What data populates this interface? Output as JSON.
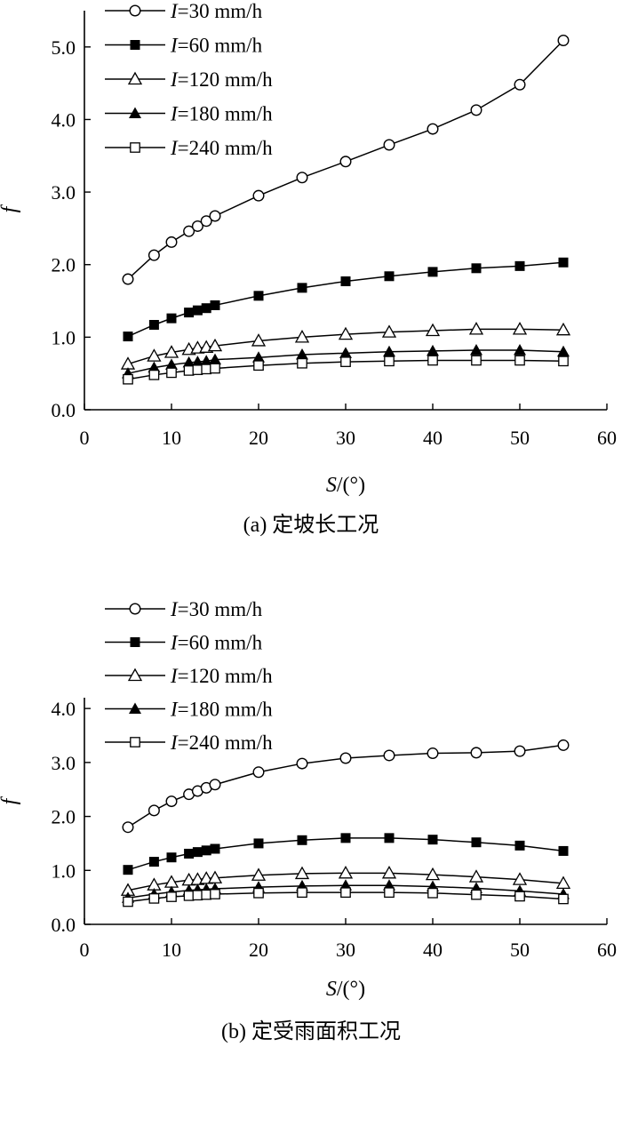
{
  "chart_data": [
    {
      "type": "line",
      "caption": "(a) 定坡长工况",
      "xlabel_var": "S",
      "xlabel_unit": "/(°)",
      "ylabel": "f",
      "xlim": [
        0,
        60
      ],
      "ylim": [
        0,
        5.5
      ],
      "xticks": [
        0,
        10,
        20,
        30,
        40,
        50,
        60
      ],
      "yticks": [
        "0.0",
        "1.0",
        "2.0",
        "3.0",
        "4.0",
        "5.0"
      ],
      "legend_position": "top-left",
      "x": [
        5,
        8,
        10,
        12,
        13,
        14,
        15,
        20,
        25,
        30,
        35,
        40,
        45,
        50,
        55
      ],
      "series": [
        {
          "name_var": "I",
          "name_rest": "=30 mm/h",
          "marker": "circle-open",
          "values": [
            1.8,
            2.13,
            2.31,
            2.46,
            2.53,
            2.6,
            2.67,
            2.95,
            3.2,
            3.42,
            3.65,
            3.87,
            4.13,
            4.48,
            5.09
          ]
        },
        {
          "name_var": "I",
          "name_rest": "=60 mm/h",
          "marker": "square-filled",
          "values": [
            1.01,
            1.17,
            1.26,
            1.34,
            1.37,
            1.4,
            1.44,
            1.57,
            1.68,
            1.77,
            1.84,
            1.9,
            1.95,
            1.98,
            2.03
          ]
        },
        {
          "name_var": "I",
          "name_rest": "=120 mm/h",
          "marker": "triangle-open",
          "values": [
            0.63,
            0.74,
            0.79,
            0.83,
            0.85,
            0.86,
            0.88,
            0.95,
            1.0,
            1.04,
            1.07,
            1.09,
            1.11,
            1.11,
            1.1
          ]
        },
        {
          "name_var": "I",
          "name_rest": "=180 mm/h",
          "marker": "triangle-filled",
          "values": [
            0.5,
            0.58,
            0.62,
            0.65,
            0.66,
            0.67,
            0.69,
            0.72,
            0.76,
            0.78,
            0.8,
            0.81,
            0.82,
            0.82,
            0.8
          ]
        },
        {
          "name_var": "I",
          "name_rest": "=240 mm/h",
          "marker": "square-open",
          "values": [
            0.42,
            0.48,
            0.51,
            0.54,
            0.55,
            0.56,
            0.57,
            0.61,
            0.64,
            0.66,
            0.67,
            0.68,
            0.68,
            0.68,
            0.67
          ]
        }
      ]
    },
    {
      "type": "line",
      "caption": "(b) 定受雨面积工况",
      "xlabel_var": "S",
      "xlabel_unit": "/(°)",
      "ylabel": "f",
      "xlim": [
        0,
        60
      ],
      "ylim": [
        0,
        4.2
      ],
      "xticks": [
        0,
        10,
        20,
        30,
        40,
        50,
        60
      ],
      "yticks": [
        "0.0",
        "1.0",
        "2.0",
        "3.0",
        "4.0"
      ],
      "legend_position": "top-left",
      "x": [
        5,
        8,
        10,
        12,
        13,
        14,
        15,
        20,
        25,
        30,
        35,
        40,
        45,
        50,
        55
      ],
      "series": [
        {
          "name_var": "I",
          "name_rest": "=30 mm/h",
          "marker": "circle-open",
          "values": [
            1.8,
            2.11,
            2.28,
            2.41,
            2.47,
            2.53,
            2.59,
            2.82,
            2.98,
            3.08,
            3.13,
            3.17,
            3.18,
            3.21,
            3.32
          ]
        },
        {
          "name_var": "I",
          "name_rest": "=60 mm/h",
          "marker": "square-filled",
          "values": [
            1.01,
            1.16,
            1.24,
            1.31,
            1.34,
            1.37,
            1.4,
            1.5,
            1.56,
            1.6,
            1.6,
            1.57,
            1.52,
            1.46,
            1.36
          ]
        },
        {
          "name_var": "I",
          "name_rest": "=120 mm/h",
          "marker": "triangle-open",
          "values": [
            0.63,
            0.73,
            0.78,
            0.82,
            0.83,
            0.85,
            0.86,
            0.91,
            0.94,
            0.95,
            0.95,
            0.92,
            0.88,
            0.83,
            0.76
          ]
        },
        {
          "name_var": "I",
          "name_rest": "=180 mm/h",
          "marker": "triangle-filled",
          "values": [
            0.49,
            0.56,
            0.6,
            0.63,
            0.64,
            0.65,
            0.66,
            0.69,
            0.71,
            0.72,
            0.72,
            0.7,
            0.67,
            0.62,
            0.56
          ]
        },
        {
          "name_var": "I",
          "name_rest": "=240 mm/h",
          "marker": "square-open",
          "values": [
            0.42,
            0.48,
            0.51,
            0.53,
            0.54,
            0.55,
            0.56,
            0.58,
            0.59,
            0.59,
            0.59,
            0.58,
            0.55,
            0.52,
            0.47
          ]
        }
      ]
    }
  ]
}
